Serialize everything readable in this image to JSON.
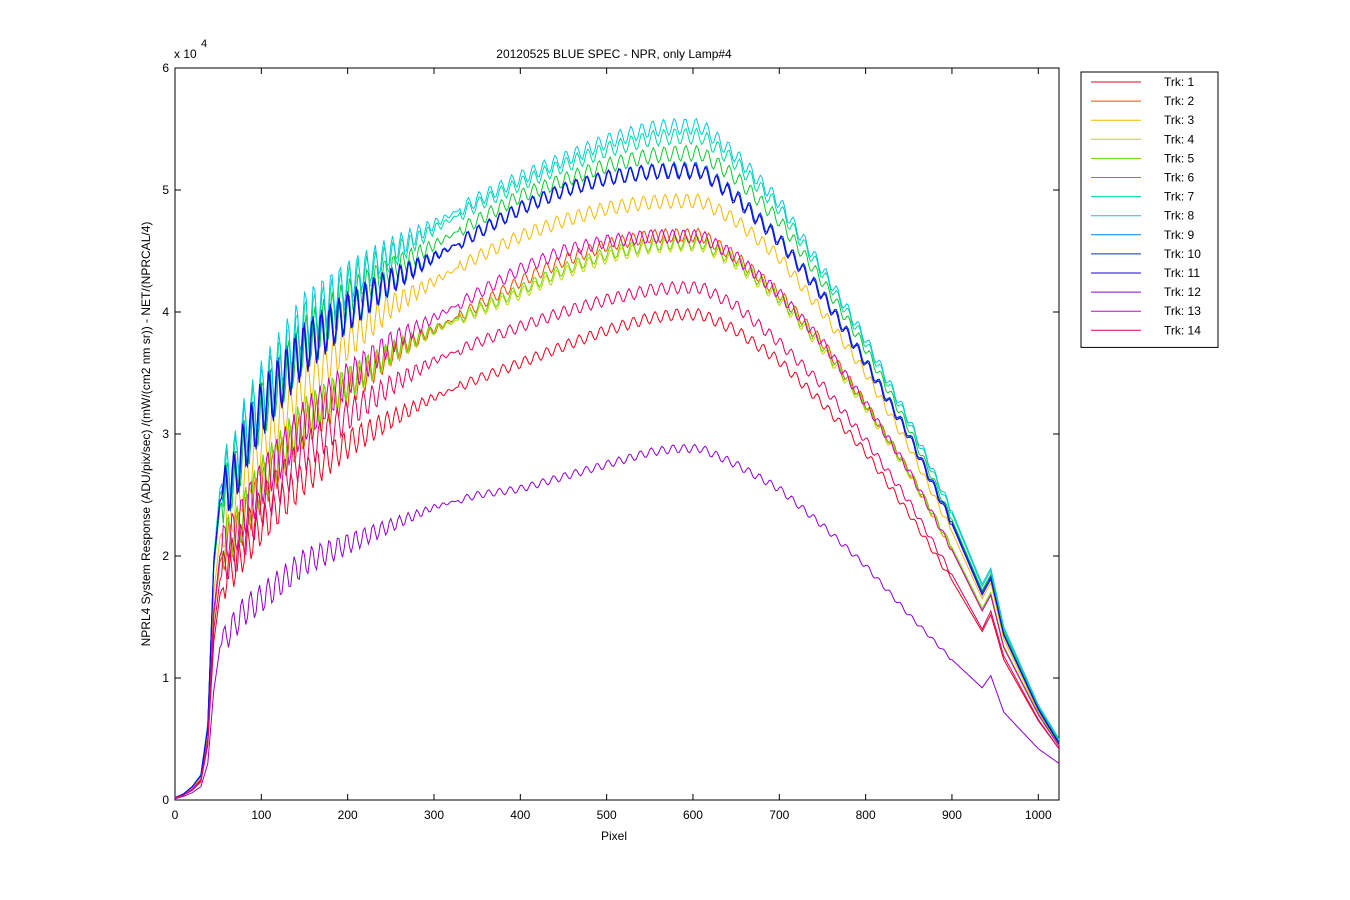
{
  "chart_data": {
    "type": "line",
    "title": "20120525 BLUE SPEC - NPR, only Lamp#4",
    "xlabel": "Pixel",
    "ylabel": "NPRL4 System Response (ADU/pix/sec) /(mW/(cm2 nm sr)) - NET/(NPRCAL/4)",
    "y_exponent_label": "x 10",
    "y_exponent": "4",
    "xlim": [
      0,
      1024
    ],
    "ylim": [
      0,
      6
    ],
    "x_ticks": [
      0,
      100,
      200,
      300,
      400,
      500,
      600,
      700,
      800,
      900,
      1000
    ],
    "y_ticks": [
      0,
      1,
      2,
      3,
      4,
      5,
      6
    ],
    "grid": false,
    "legend_position": "outside-right-top",
    "x_points": [
      0,
      10,
      20,
      30,
      38,
      45,
      52,
      60,
      70,
      80,
      100,
      150,
      200,
      250,
      300,
      350,
      400,
      450,
      500,
      550,
      580,
      610,
      650,
      700,
      750,
      800,
      850,
      900,
      935,
      945,
      960,
      1000,
      1024
    ],
    "series": [
      {
        "name": "Trk: 1",
        "color": "#e8001c",
        "values": [
          0.02,
          0.04,
          0.08,
          0.15,
          0.45,
          1.3,
          1.68,
          1.85,
          1.92,
          2.05,
          2.25,
          2.65,
          2.92,
          3.12,
          3.3,
          3.45,
          3.58,
          3.72,
          3.85,
          3.95,
          3.98,
          3.98,
          3.85,
          3.6,
          3.25,
          2.85,
          2.35,
          1.8,
          1.38,
          1.52,
          1.15,
          0.65,
          0.42
        ]
      },
      {
        "name": "Trk: 2",
        "color": "#f04a00",
        "values": [
          0.02,
          0.04,
          0.09,
          0.17,
          0.5,
          1.5,
          1.95,
          2.1,
          2.15,
          2.3,
          2.55,
          3.05,
          3.35,
          3.65,
          3.85,
          4.05,
          4.25,
          4.42,
          4.55,
          4.62,
          4.63,
          4.63,
          4.45,
          4.15,
          3.75,
          3.25,
          2.7,
          2.05,
          1.55,
          1.68,
          1.25,
          0.7,
          0.45
        ]
      },
      {
        "name": "Trk: 3",
        "color": "#f5b800",
        "values": [
          0.02,
          0.05,
          0.1,
          0.19,
          0.55,
          1.7,
          2.15,
          2.3,
          2.4,
          2.6,
          2.9,
          3.4,
          3.75,
          4.05,
          4.25,
          4.45,
          4.62,
          4.75,
          4.85,
          4.9,
          4.91,
          4.91,
          4.75,
          4.45,
          4.0,
          3.5,
          2.9,
          2.2,
          1.65,
          1.78,
          1.32,
          0.72,
          0.46
        ]
      },
      {
        "name": "Trk: 4",
        "color": "#c8d600",
        "values": [
          0.02,
          0.04,
          0.09,
          0.17,
          0.5,
          1.55,
          2.0,
          2.15,
          2.2,
          2.35,
          2.6,
          3.1,
          3.4,
          3.65,
          3.85,
          4.0,
          4.15,
          4.32,
          4.45,
          4.53,
          4.55,
          4.55,
          4.4,
          4.1,
          3.7,
          3.22,
          2.68,
          2.05,
          1.55,
          1.68,
          1.25,
          0.7,
          0.44
        ]
      },
      {
        "name": "Trk: 5",
        "color": "#6ad600",
        "values": [
          0.02,
          0.04,
          0.09,
          0.17,
          0.5,
          1.55,
          2.0,
          2.15,
          2.2,
          2.36,
          2.62,
          3.12,
          3.42,
          3.67,
          3.86,
          4.02,
          4.18,
          4.35,
          4.48,
          4.55,
          4.57,
          4.57,
          4.42,
          4.12,
          3.72,
          3.24,
          2.7,
          2.07,
          1.57,
          1.7,
          1.26,
          0.71,
          0.45
        ]
      },
      {
        "name": "Trk: 6",
        "color": "#10c830",
        "values": [
          0.02,
          0.05,
          0.11,
          0.2,
          0.6,
          1.9,
          2.4,
          2.55,
          2.65,
          2.9,
          3.2,
          3.75,
          4.1,
          4.35,
          4.55,
          4.75,
          4.95,
          5.08,
          5.2,
          5.28,
          5.3,
          5.3,
          5.1,
          4.75,
          4.25,
          3.7,
          3.05,
          2.3,
          1.72,
          1.85,
          1.38,
          0.76,
          0.48
        ]
      },
      {
        "name": "Trk: 7",
        "color": "#00d8a0",
        "values": [
          0.02,
          0.05,
          0.11,
          0.21,
          0.62,
          1.95,
          2.5,
          2.65,
          2.75,
          3.0,
          3.3,
          3.88,
          4.2,
          4.45,
          4.68,
          4.88,
          5.05,
          5.2,
          5.33,
          5.42,
          5.44,
          5.44,
          5.22,
          4.85,
          4.32,
          3.75,
          3.1,
          2.35,
          1.75,
          1.88,
          1.4,
          0.77,
          0.49
        ]
      },
      {
        "name": "Trk: 8",
        "color": "#00c8e0",
        "values": [
          0.02,
          0.05,
          0.11,
          0.21,
          0.63,
          2.0,
          2.55,
          2.7,
          2.8,
          3.05,
          3.35,
          3.95,
          4.25,
          4.5,
          4.72,
          4.92,
          5.1,
          5.25,
          5.4,
          5.5,
          5.52,
          5.52,
          5.28,
          4.9,
          4.35,
          3.78,
          3.12,
          2.37,
          1.77,
          1.9,
          1.42,
          0.78,
          0.5
        ]
      },
      {
        "name": "Trk: 9",
        "color": "#0080e0",
        "values": [
          0.02,
          0.05,
          0.11,
          0.2,
          0.6,
          1.95,
          2.45,
          2.55,
          2.65,
          2.9,
          3.2,
          3.7,
          4.0,
          4.25,
          4.45,
          4.65,
          4.85,
          5.0,
          5.1,
          5.15,
          5.17,
          5.17,
          4.95,
          4.6,
          4.15,
          3.6,
          3.0,
          2.28,
          1.7,
          1.83,
          1.36,
          0.75,
          0.47
        ]
      },
      {
        "name": "Trk: 10",
        "color": "#0030d8",
        "values": [
          0.02,
          0.05,
          0.11,
          0.2,
          0.6,
          1.95,
          2.45,
          2.55,
          2.65,
          2.9,
          3.2,
          3.7,
          4.0,
          4.25,
          4.45,
          4.65,
          4.85,
          5.0,
          5.1,
          5.15,
          5.16,
          5.16,
          4.95,
          4.6,
          4.15,
          3.6,
          3.0,
          2.28,
          1.7,
          1.83,
          1.36,
          0.75,
          0.47
        ]
      },
      {
        "name": "Trk: 11",
        "color": "#1a00e0",
        "values": [
          0.02,
          0.05,
          0.11,
          0.2,
          0.6,
          1.95,
          2.45,
          2.55,
          2.65,
          2.9,
          3.2,
          3.7,
          4.0,
          4.25,
          4.45,
          4.65,
          4.85,
          5.0,
          5.1,
          5.15,
          5.15,
          5.15,
          4.93,
          4.58,
          4.13,
          3.58,
          2.98,
          2.26,
          1.68,
          1.81,
          1.35,
          0.74,
          0.46
        ]
      },
      {
        "name": "Trk: 12",
        "color": "#9000d0",
        "values": [
          0.01,
          0.03,
          0.06,
          0.11,
          0.3,
          0.9,
          1.25,
          1.35,
          1.45,
          1.55,
          1.65,
          1.95,
          2.1,
          2.25,
          2.4,
          2.5,
          2.55,
          2.65,
          2.75,
          2.85,
          2.88,
          2.88,
          2.75,
          2.55,
          2.25,
          1.92,
          1.52,
          1.15,
          0.92,
          1.02,
          0.72,
          0.42,
          0.3
        ]
      },
      {
        "name": "Trk: 13",
        "color": "#d000b0",
        "values": [
          0.02,
          0.04,
          0.09,
          0.17,
          0.5,
          1.55,
          2.0,
          2.15,
          2.2,
          2.35,
          2.6,
          3.1,
          3.45,
          3.75,
          3.95,
          4.15,
          4.35,
          4.5,
          4.58,
          4.62,
          4.62,
          4.62,
          4.45,
          4.15,
          3.75,
          3.25,
          2.7,
          2.05,
          1.55,
          1.68,
          1.25,
          0.7,
          0.44
        ]
      },
      {
        "name": "Trk: 14",
        "color": "#e00060",
        "values": [
          0.02,
          0.04,
          0.08,
          0.16,
          0.47,
          1.4,
          1.8,
          1.95,
          2.0,
          2.15,
          2.4,
          2.85,
          3.15,
          3.4,
          3.6,
          3.75,
          3.88,
          4.0,
          4.1,
          4.18,
          4.2,
          4.2,
          4.05,
          3.75,
          3.4,
          2.95,
          2.45,
          1.85,
          1.4,
          1.55,
          1.18,
          0.66,
          0.42
        ]
      }
    ]
  }
}
